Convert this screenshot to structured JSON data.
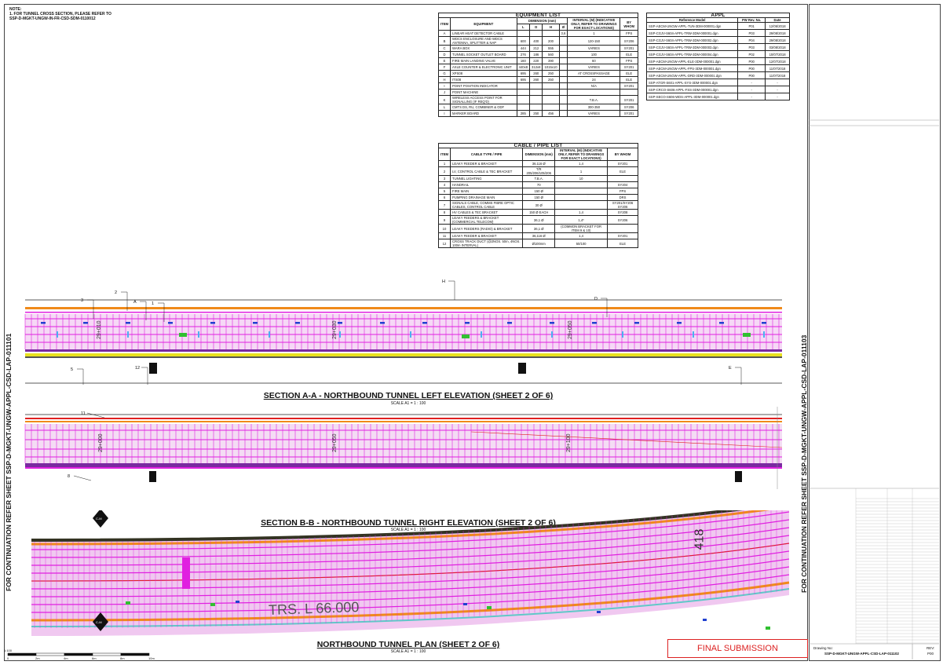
{
  "note": {
    "line1": "NOTE:",
    "line2": "1.   FOR TUNNEL CROSS SECTION, PLEASE REFER TO",
    "line3": "SSP-D-MGKT-UNGW-IN-FR-CSD-SDM-0110012"
  },
  "equipment_list": {
    "title": "EQUIPMENT LIST",
    "headers": {
      "item": "ITEM",
      "equipment": "EQUIPMENT",
      "dimension": "DIMENSION (mm)",
      "interval": "INTERVAL (M) (INDICATIVE ONLY, REFER TO DRAWINGS FOR EXACT LOCATIONS)",
      "by_whom": "BY WHOM"
    },
    "dim_sub": [
      "L",
      "D",
      "H",
      "Ø"
    ],
    "rows": [
      {
        "item": "A",
        "equipment": "LINEAR HEAT DETECTOR CABLE",
        "l": "",
        "d": "",
        "h": "",
        "dia": "3,6",
        "interval": "1",
        "by": "FPS"
      },
      {
        "item": "B",
        "equipment": "WDCS ENCLOSURE AND WDCS ANTENNA, SPLITTER & NAP",
        "l": "600",
        "d": "400",
        "h": "200",
        "dia": "",
        "interval": "120-150",
        "by": "SY206"
      },
      {
        "item": "C",
        "equipment": "WARA BOX",
        "l": "444",
        "d": "212",
        "h": "555",
        "dia": "",
        "interval": "VARIES",
        "by": "SY201"
      },
      {
        "item": "D",
        "equipment": "TUNNEL SOCKET OUTLET BOARD",
        "l": "276",
        "d": "186",
        "h": "560",
        "dia": "",
        "interval": "100",
        "by": "ELE"
      },
      {
        "item": "E",
        "equipment": "FIRE MAIN LANDING VALVE",
        "l": "160",
        "d": "220",
        "h": "390",
        "dia": "",
        "interval": "60",
        "by": "FPS"
      },
      {
        "item": "F",
        "equipment": "AXLE COUNTER & ELECTRONIC UNIT",
        "l": "440x8",
        "d": "312x8",
        "h": "1015x10",
        "dia": "",
        "interval": "VARIES",
        "by": "SY201"
      },
      {
        "item": "G",
        "equipment": "XPS08",
        "l": "695",
        "d": "260",
        "h": "250",
        "dia": "",
        "interval": "AT CROSSPASSAGE",
        "by": "ELE"
      },
      {
        "item": "H",
        "equipment": "ITS08",
        "l": "695",
        "d": "260",
        "h": "250",
        "dia": "",
        "interval": "24",
        "by": "ELE"
      },
      {
        "item": "I",
        "equipment": "POINT POSITION INDICATOR",
        "l": "",
        "d": "",
        "h": "",
        "dia": "",
        "interval": "N/A",
        "by": "SY201"
      },
      {
        "item": "J",
        "equipment": "POINT MACHINE",
        "l": "",
        "d": "",
        "h": "",
        "dia": "",
        "interval": "",
        "by": ""
      },
      {
        "item": "K",
        "equipment": "WIRELESS ACCESS POINT FOR SIGNALLING (IF REQ'D)",
        "l": "",
        "d": "",
        "h": "",
        "dia": "",
        "interval": "T.B.A.",
        "by": "SY201"
      },
      {
        "item": "L",
        "equipment": "CMTS DS, RU, COMBINER & ODF",
        "l": "",
        "d": "",
        "h": "",
        "dia": "",
        "interval": "300-350",
        "by": "SY206"
      },
      {
        "item": "I",
        "equipment": "MARKER BOARD",
        "l": "285",
        "d": "250",
        "h": "456",
        "dia": "",
        "interval": "VARIES",
        "by": "SY201"
      }
    ]
  },
  "appl": {
    "title": "APPL",
    "headers": {
      "model": "Reference Model",
      "rev": "PW Rev. No.",
      "date": "Date"
    },
    "rows": [
      {
        "model": "SSP-AECM-UNGW-APPL-TUN-3DM-000001.dgn",
        "rev": "P01",
        "date": "12/06/2018"
      },
      {
        "model": "SSP-CGJV-S604-APPL-TRW-3DM-000001.dgn",
        "rev": "P03",
        "date": "29/08/2018"
      },
      {
        "model": "SSP-CGJV-S604-APPL-TRW-3DM-000002.dgn",
        "rev": "P04",
        "date": "29/08/2018"
      },
      {
        "model": "SSP-CGJV-S604-APPL-TRW-3DM-000003.dgn",
        "rev": "P03",
        "date": "03/08/2018"
      },
      {
        "model": "SSP-CGJV-S604-APPL-TRW-3DM-000004.dgn",
        "rev": "P02",
        "date": "10/07/2018"
      },
      {
        "model": "SSP-AECM-UNGW-APPL-ELE-3DM-000001.dgn",
        "rev": "P00",
        "date": "12/07/2018"
      },
      {
        "model": "SSP-AECM-UNGW-APPL-FPS-3DM-000001.dgn",
        "rev": "P00",
        "date": "11/07/2018"
      },
      {
        "model": "SSP-AECM-UNGW-APPL-DRD-3DM-000001.dgn",
        "rev": "P00",
        "date": "11/07/2018"
      },
      {
        "model": "SSP-ATGR-S601-APPL-SYS-3DM-000001.dgn",
        "rev": "-",
        "date": "-"
      },
      {
        "model": "SSP-CRCO-S606-APPL-FSS-3DM-000001.dgn",
        "rev": "-",
        "date": "-"
      },
      {
        "model": "SSP-SECO-S606-WDS-APPL-3DM-000001.dgn",
        "rev": "-",
        "date": "-"
      }
    ]
  },
  "cable_list": {
    "title": "CABLE / PIPE LIST",
    "headers": {
      "item": "ITEM",
      "type": "CABLE TYPE / PIPE",
      "dimension": "DIMENSION (mm)",
      "interval": "INTERVAL (M) (INDICATIVE ONLY, REFER TO DRAWINGS FOR EXACT LOCATIONS)",
      "by_whom": "BY WHOM"
    },
    "rows": [
      {
        "item": "1",
        "type": "LEAKY FEEDER & BRACKET",
        "dim": "36,116 Ø",
        "interval": "1,4",
        "by": "SY201"
      },
      {
        "item": "2",
        "type": "LV, CONTROL CABLE & TEC BRACKET",
        "dim": "T/R 205/206/105/206",
        "interval": "1",
        "by": "ELE"
      },
      {
        "item": "3",
        "type": "TUNNEL LIGHTING",
        "dim": "T.B.A.",
        "interval": "10",
        "by": ""
      },
      {
        "item": "4",
        "type": "HANDRAIL",
        "dim": "70",
        "interval": "",
        "by": "SY204"
      },
      {
        "item": "5",
        "type": "FIRE MAIN",
        "dim": "150 Ø",
        "interval": "",
        "by": "FPS"
      },
      {
        "item": "6",
        "type": "PUMPING DRAINAGE MAIN",
        "dim": "150 Ø",
        "interval": "",
        "by": "DRS"
      },
      {
        "item": "7",
        "type": "SIGNALS CABLE, COMMS FIBRE OPTIC CABLES, CONTROL CABLE",
        "dim": "30 Ø",
        "interval": "",
        "by": "SY201/SY206 SY206"
      },
      {
        "item": "8",
        "type": "HV CABLES & TEC BRACKET",
        "dim": "150 Ø EACH",
        "interval": "1,4",
        "by": "SY208"
      },
      {
        "item": "9",
        "type": "LEAKY FEEDERS & BRACKET (COMMERCIAL TELECOM)",
        "dim": "36,1 Ø",
        "interval": "1,4*",
        "by": "SY206"
      },
      {
        "item": "10",
        "type": "LEAKY FEEDERS (RADIO) & BRACKET",
        "dim": "36,1 Ø",
        "interval": "(COMMON BRACKET FOR ITEM 9 & 10)",
        "by": ""
      },
      {
        "item": "11",
        "type": "LEAKY FEEDER & BRACKET",
        "dim": "36,116 Ø",
        "interval": "1,4",
        "by": "SY201"
      },
      {
        "item": "12",
        "type": "CROSS TRACK DUCT (@2NOS. 50m, 4NOS. 100m INTERVAL)",
        "dim": "Ø100mm",
        "interval": "50/100",
        "by": "ELE"
      }
    ]
  },
  "sections": {
    "a": {
      "title": "SECTION A-A - NORTHBOUND TUNNEL LEFT ELEVATION (SHEET 2 OF 6)",
      "scale": "SCALE A1 = 1 : 100",
      "chainages": [
        "29+010",
        "29+030",
        "29+050"
      ],
      "callouts": [
        "3",
        "2",
        "A",
        "1",
        "H",
        "D",
        "5",
        "12",
        "E"
      ]
    },
    "b": {
      "title": "SECTION B-B - NORTHBOUND TUNNEL RIGHT ELEVATION (SHEET 2 OF 6)",
      "scale": "SCALE A1 = 1 : 100",
      "chainages": [
        "29+000",
        "29+050",
        "29+100"
      ],
      "callouts": [
        "11",
        "8"
      ]
    },
    "plan": {
      "title": "NORTHBOUND TUNNEL PLAN (SHEET 2 OF 6)",
      "scale": "SCALE A1 = 1 : 100",
      "trs": "TRS. L 66.000",
      "chain": "418",
      "markers": [
        "C-M",
        "C-M"
      ]
    }
  },
  "continuation": {
    "left": "FOR CONTINUATION REFER SHEET SSP-D-MGKT-UNGW-APPL-CSD-LAP-011101",
    "right": "FOR CONTINUATION REFER SHEET SSP-D-MGKT-UNGW-APPL-CSD-LAP-011103"
  },
  "scale_bar": {
    "labels": [
      "0",
      "2m",
      "4m",
      "6m",
      "8m",
      "10m"
    ],
    "start": "1:100"
  },
  "final_submission": "FINAL SUBMISSION",
  "title_block": {
    "drawing_label": "Drawing No:",
    "drawing_no": "SSP-D-MGKT-UNGW-APPL-CSD-LAP-011102",
    "rev_label": "REV:",
    "rev": "P00"
  },
  "colors": {
    "magenta": "#e020e0",
    "orange": "#f08a1a",
    "yellow": "#e8e020",
    "purple": "#7a2aa0",
    "red": "#e02020",
    "green": "#30c030",
    "blue": "#2040d0"
  }
}
